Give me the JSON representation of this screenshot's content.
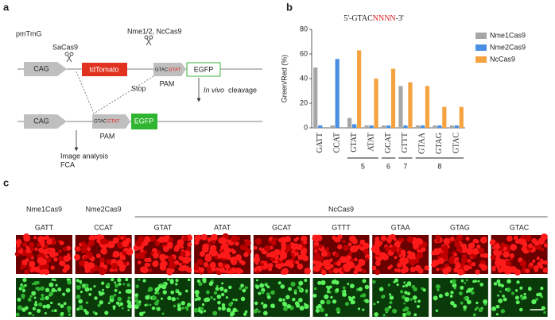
{
  "panel_a": {
    "label": "a",
    "construct": "pmTmG",
    "sacas9": "SaCas9",
    "others": "Nme1/2, NcCas9",
    "cag1": "CAG",
    "tdtomato": "tdTomato",
    "stop": "Stop",
    "site1": "GTAC",
    "pam_seq1": "GTAT",
    "pam1": "PAM",
    "egfp1": "EGFP",
    "invivo": "In vivo",
    "cleavage": "cleavage",
    "cag2": "CAG",
    "site2": "GTAC",
    "pam_seq2": "GTAT",
    "pam2": "PAM",
    "egfp2": "EGFP",
    "analysis": "Image analysis",
    "fca": "FCA"
  },
  "panel_b": {
    "label": "b"
  },
  "chart_data": {
    "type": "bar",
    "title": [
      "5'-GTAC",
      "NNNN",
      "-3'"
    ],
    "title_colors": [
      "#222222",
      "#e02020",
      "#222222"
    ],
    "y_label": "Green/Red (%)",
    "categories": [
      "GATT",
      "CCAT",
      "GTAT",
      "ATAT",
      "GCAT",
      "GTTT",
      "GTAA",
      "GTAG",
      "GTAC"
    ],
    "series": [
      {
        "name": "Nme1Cas9",
        "color": "#a6a6a6",
        "values": [
          49,
          2,
          8,
          2,
          2,
          34,
          2,
          2,
          2
        ]
      },
      {
        "name": "Nme2Cas9",
        "color": "#4a90e2",
        "values": [
          2,
          56,
          3,
          2,
          2,
          2,
          2,
          2,
          2
        ]
      },
      {
        "name": "NcCas9",
        "color": "#f5a340",
        "values": [
          null,
          null,
          63,
          40,
          48,
          37,
          34,
          17,
          17
        ]
      }
    ],
    "groups": [
      {
        "label": "5",
        "members": [
          "GTAT",
          "ATAT"
        ]
      },
      {
        "label": "6",
        "members": [
          "GCAT"
        ]
      },
      {
        "label": "7",
        "members": [
          "GTTT"
        ]
      },
      {
        "label": "8",
        "members": [
          "GTAA",
          "GTAG",
          "GTAC"
        ]
      }
    ],
    "ylim": [
      0,
      80
    ],
    "yticks": [
      0,
      20,
      40,
      60,
      80
    ],
    "legend": "right"
  },
  "panel_c": {
    "label": "c",
    "enzymes": [
      "Nme1Cas9",
      "Nme2Cas9",
      "NcCas9"
    ],
    "sequences": [
      "GATT",
      "CCAT",
      "GTAT",
      "ATAT",
      "GCAT",
      "GTTT",
      "GTAA",
      "GTAG",
      "GTAC"
    ]
  }
}
